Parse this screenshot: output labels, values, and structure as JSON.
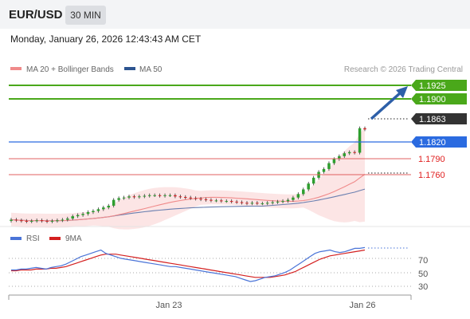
{
  "header": {
    "pair": "EUR/USD",
    "timeframe": "30 MIN"
  },
  "timestamp": "Monday, January 26, 2026 12:43:43 AM CET",
  "legend": {
    "ma20_label": "MA 20 + Bollinger Bands",
    "ma50_label": "MA 50",
    "rsi_label": "RSI",
    "ma9_label": "9MA"
  },
  "credit": "Research © 2026 Trading Central",
  "colors": {
    "candle_up": "#2e9e2e",
    "candle_down": "#d42020",
    "ma20": "#f08a8a",
    "ma50": "#6a7fb0",
    "bands_fill": "#fbdcdc",
    "resistance": "#4aa81a",
    "support_blue": "#2b6be0",
    "support_red": "#e06060",
    "rsi": "#4a74d8",
    "ma9": "#d42020",
    "arrow": "#2d5fa8"
  },
  "levels": [
    {
      "value": "1.1925",
      "type": "resistance"
    },
    {
      "value": "1.1900",
      "type": "resistance"
    },
    {
      "value": "1.1863",
      "type": "current"
    },
    {
      "value": "1.1820",
      "type": "pivot"
    },
    {
      "value": "1.1790",
      "type": "support"
    },
    {
      "value": "1.1760",
      "type": "support"
    }
  ],
  "rsi_ticks": [
    "70",
    "50",
    "30"
  ],
  "x_ticks": [
    "Jan 23",
    "Jan 26"
  ],
  "chart_data": [
    {
      "type": "line",
      "series": [
        {
          "name": "EUR/USD",
          "close": [
            1.1708,
            1.1707,
            1.1706,
            1.1705,
            1.1706,
            1.1707,
            1.1706,
            1.1705,
            1.1706,
            1.1707,
            1.1708,
            1.171,
            1.1714,
            1.1716,
            1.1718,
            1.1721,
            1.1723,
            1.1726,
            1.1729,
            1.1732,
            1.1742,
            1.1745,
            1.1746,
            1.1748,
            1.1747,
            1.1748,
            1.1749,
            1.175,
            1.175,
            1.1749,
            1.175,
            1.175,
            1.1748,
            1.1747,
            1.1746,
            1.1745,
            1.1744,
            1.1743,
            1.1742,
            1.1741,
            1.1741,
            1.174,
            1.174,
            1.1739,
            1.1738,
            1.1737,
            1.1736,
            1.1737,
            1.1736,
            1.1736,
            1.1737,
            1.1738,
            1.1739,
            1.174,
            1.1742,
            1.1746,
            1.1752,
            1.176,
            1.177,
            1.178,
            1.179,
            1.1795,
            1.1805,
            1.1812,
            1.1817,
            1.1822,
            1.1824,
            1.1823,
            1.1865,
            1.1863
          ]
        },
        {
          "name": "MA 20"
        },
        {
          "name": "MA 50"
        }
      ],
      "ylim": [
        1.1695,
        1.1955
      ],
      "x_ticks": [
        "Jan 23",
        "Jan 26"
      ]
    },
    {
      "type": "line",
      "series": [
        {
          "name": "RSI",
          "values": [
            48,
            48,
            49,
            49,
            50,
            51,
            50,
            49,
            51,
            52,
            53,
            55,
            58,
            61,
            64,
            66,
            68,
            70,
            72,
            68,
            66,
            64,
            62,
            61,
            60,
            59,
            58,
            57,
            56,
            55,
            54,
            53,
            52,
            52,
            51,
            50,
            49,
            48,
            47,
            46,
            45,
            44,
            43,
            42,
            41,
            40,
            38,
            36,
            34,
            35,
            37,
            39,
            40,
            41,
            43,
            45,
            48,
            52,
            56,
            60,
            64,
            68,
            70,
            71,
            72,
            70,
            69,
            70,
            72,
            74,
            74,
            75
          ]
        },
        {
          "name": "9MA",
          "values": [
            47,
            47,
            48,
            48,
            48,
            49,
            49,
            49,
            50,
            50,
            51,
            52,
            54,
            56,
            58,
            60,
            62,
            64,
            66,
            67,
            67,
            67,
            66,
            65,
            64,
            63,
            62,
            61,
            60,
            59,
            58,
            57,
            56,
            55,
            54,
            53,
            52,
            51,
            50,
            49,
            48,
            47,
            46,
            45,
            44,
            43,
            42,
            41,
            40,
            39,
            39,
            39,
            39,
            40,
            41,
            42,
            44,
            46,
            49,
            52,
            55,
            58,
            61,
            63,
            65,
            66,
            67,
            68,
            69,
            70,
            71,
            72
          ]
        }
      ],
      "ylim": [
        10,
        85
      ],
      "y_ticks": [
        70,
        50,
        30
      ]
    }
  ]
}
